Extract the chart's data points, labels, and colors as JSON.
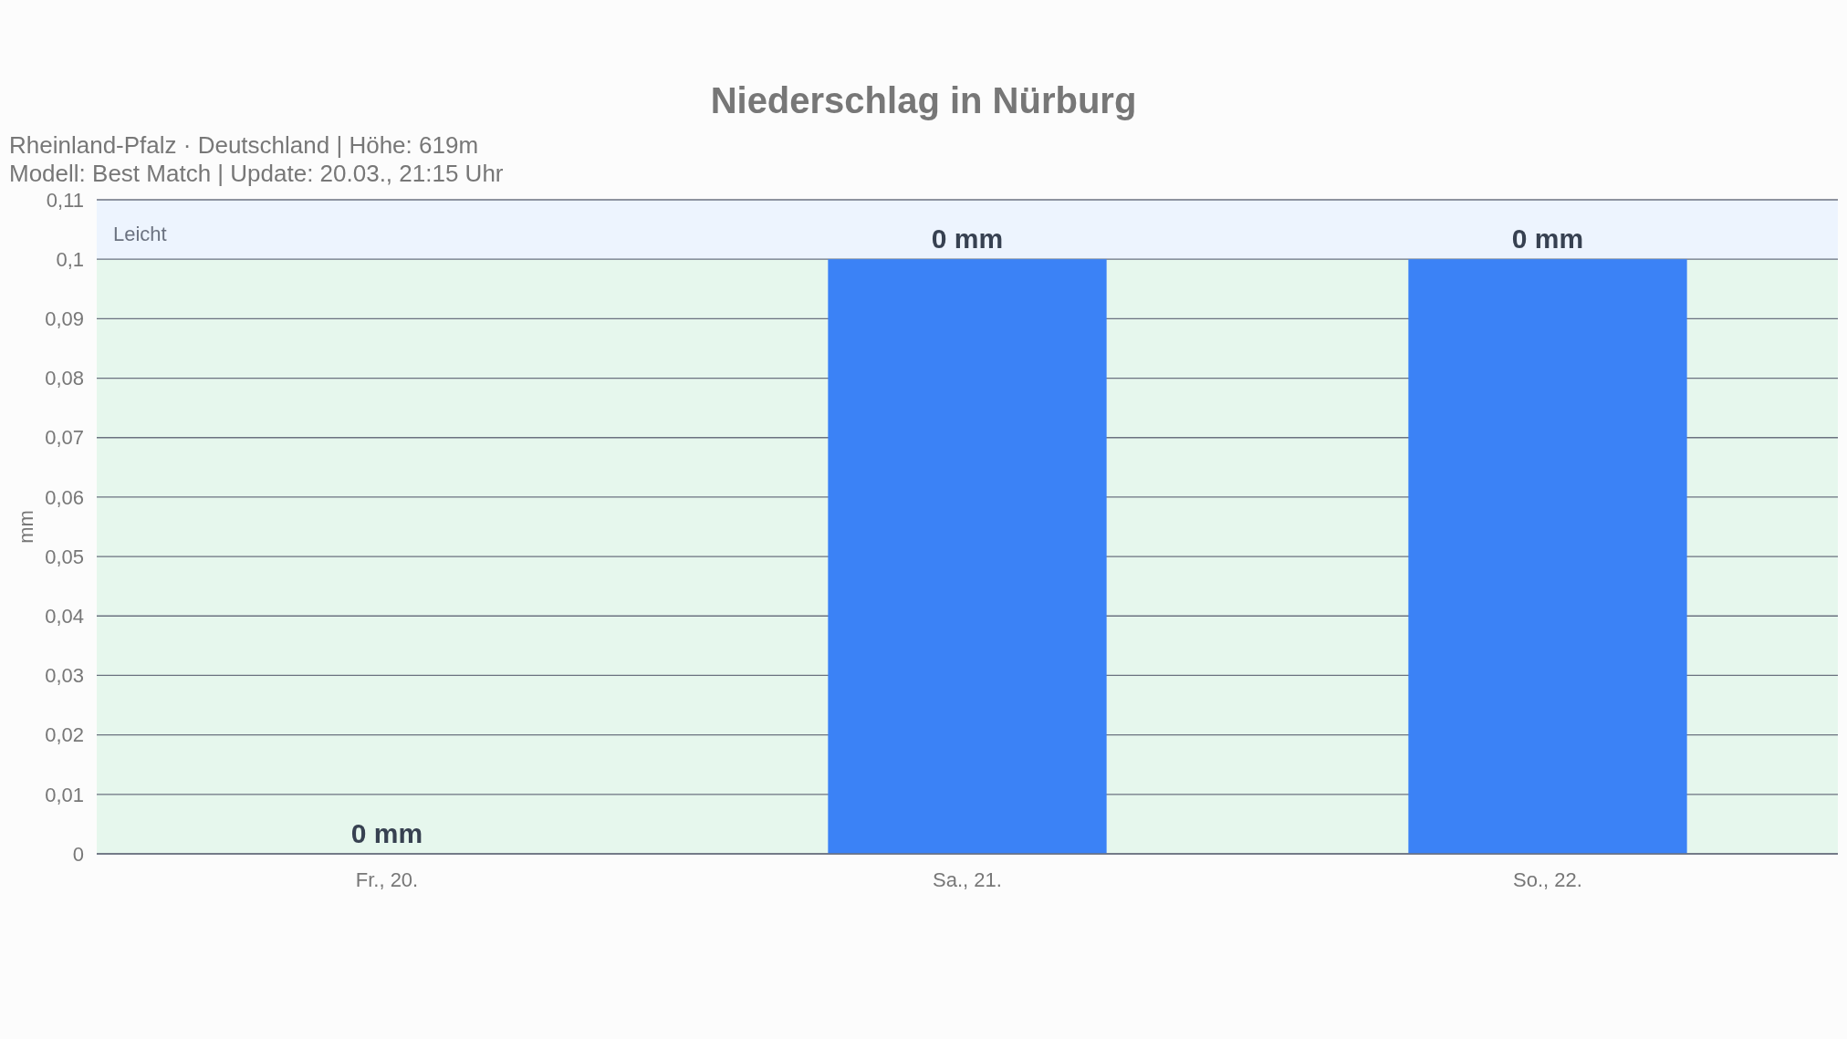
{
  "chart_data": {
    "type": "bar",
    "title": "Niederschlag in Nürburg",
    "subtitle": "Rheinland-Pfalz · Deutschland | Höhe: 619m\nModell: Best Match | Update: 20.03., 21:15 Uhr",
    "ylabel": "mm",
    "categories": [
      "Fr., 20.",
      "Sa., 21.",
      "So., 22."
    ],
    "values": [
      0,
      0.1,
      0.1
    ],
    "color": "#3b82f6",
    "value_labels": [
      "0 mm",
      "0 mm",
      "0 mm"
    ],
    "ylim": [
      0,
      0.11
    ],
    "yticks": [
      {
        "value": 0,
        "label": "0"
      },
      {
        "value": 0.01,
        "label": "0,01"
      },
      {
        "value": 0.02,
        "label": "0,02"
      },
      {
        "value": 0.03,
        "label": "0,03"
      },
      {
        "value": 0.04,
        "label": "0,04"
      },
      {
        "value": 0.05,
        "label": "0,05"
      },
      {
        "value": 0.06,
        "label": "0,06"
      },
      {
        "value": 0.07,
        "label": "0,07"
      },
      {
        "value": 0.08,
        "label": "0,08"
      },
      {
        "value": 0.09,
        "label": "0,09"
      },
      {
        "value": 0.1,
        "label": "0,1"
      },
      {
        "value": 0.11,
        "label": "0,11"
      }
    ],
    "grid": "y",
    "bands": [
      {
        "axis": "y",
        "from": 0,
        "to": 0.1,
        "color": "#e6f7ed"
      },
      {
        "axis": "y",
        "from": 0.1,
        "to": 0.11,
        "label": "Leicht",
        "color": "#edf4fe"
      }
    ]
  }
}
